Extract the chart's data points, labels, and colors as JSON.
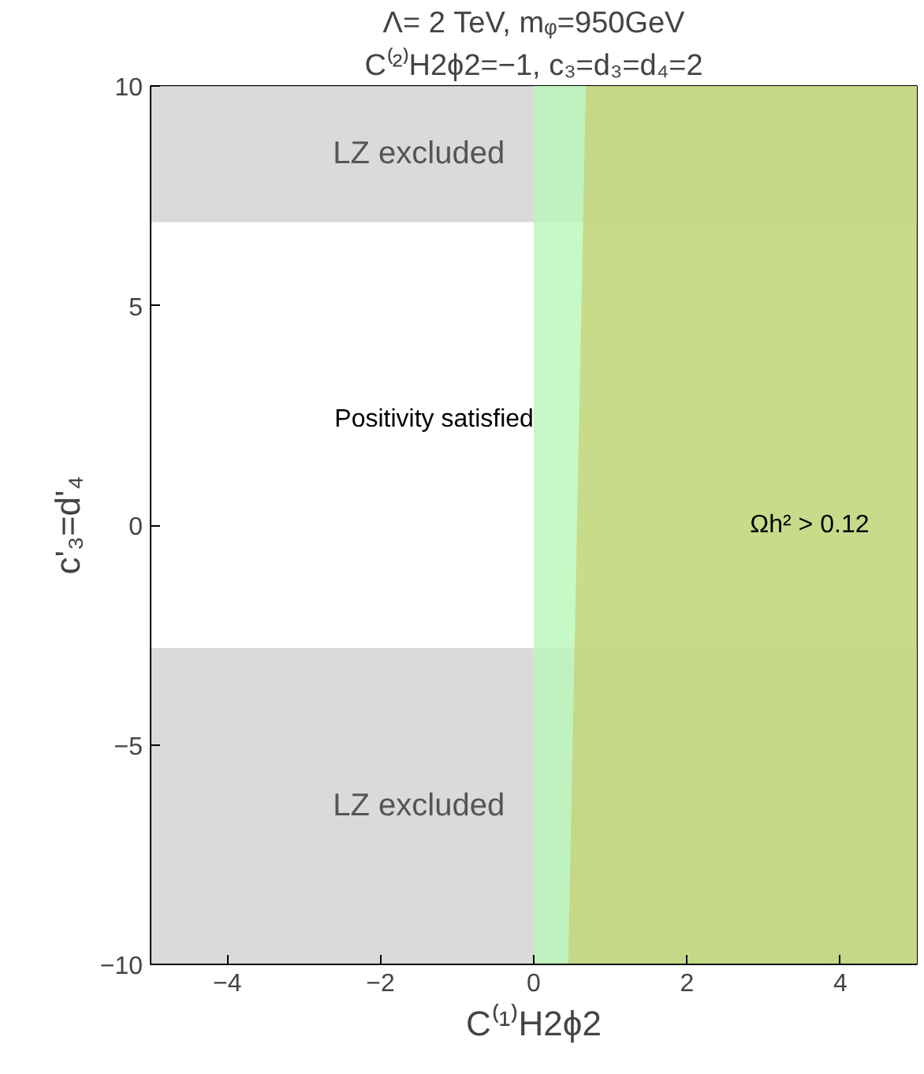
{
  "chart_data": {
    "type": "area",
    "title": "Λ= 2 TeV, mᵩ=950GeV",
    "subtitle": "C⁽²⁾H2ϕ2=−1, c₃=d₃=d₄=2",
    "xlabel": "C⁽¹⁾H2ϕ2",
    "ylabel": "c'₃=d'₄",
    "xlim": [
      -5,
      5
    ],
    "ylim": [
      -10,
      10
    ],
    "xticks": [
      {
        "value": -4,
        "label": "−4"
      },
      {
        "value": -2,
        "label": "−2"
      },
      0,
      2,
      4
    ],
    "yticks": [
      {
        "value": -10,
        "label": "−10"
      },
      {
        "value": -5,
        "label": "−5"
      },
      0,
      5,
      10
    ],
    "grid": false,
    "bands": [
      {
        "axis": "y",
        "from": 6.9,
        "to": 10,
        "label": "LZ excluded",
        "color": "#d4d4d4"
      },
      {
        "axis": "y",
        "from": -10,
        "to": -2.8,
        "label": "LZ excluded",
        "color": "#d4d4d4"
      },
      {
        "axis": "x",
        "from": 0,
        "to": 5,
        "color": "#b8f7b8"
      }
    ],
    "series": [
      {
        "color": "#c9c25a",
        "x": [
          0.45,
          0.68,
          5,
          5
        ],
        "values": [
          -10,
          10,
          10,
          -10
        ]
      }
    ],
    "annotations": [
      "Positivity satisfied",
      "Ωh² > 0.12"
    ]
  }
}
